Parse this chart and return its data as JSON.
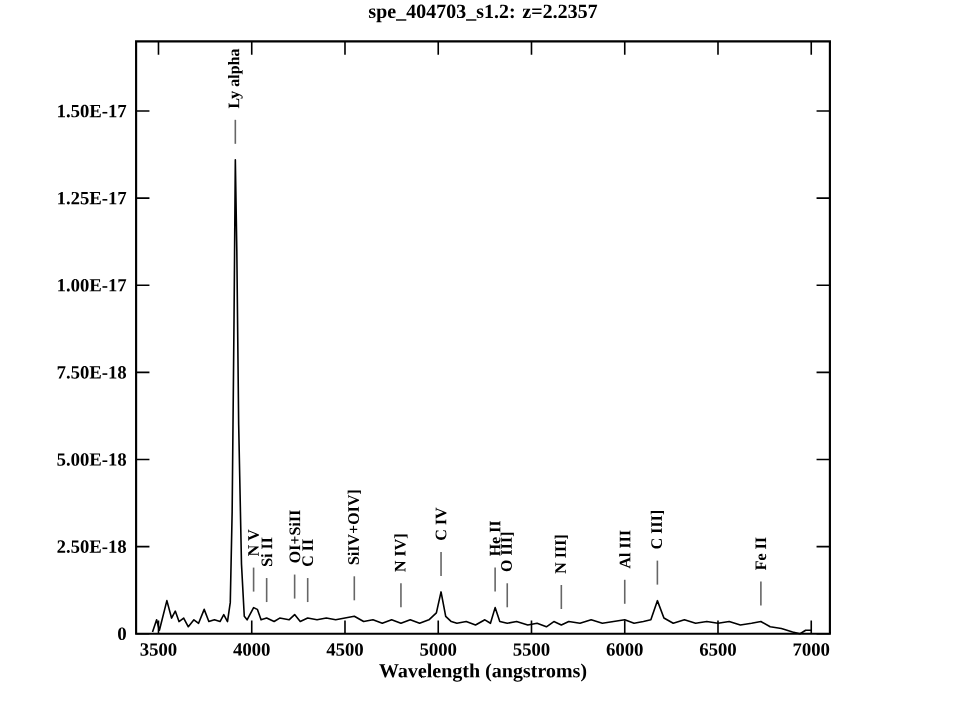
{
  "chart_data": {
    "type": "line",
    "title": "spe_404703_s1.2: z=2.2357",
    "xlabel": "Wavelength (angstroms)",
    "xlim": [
      3380,
      7100
    ],
    "ylim": [
      0,
      1.7e-17
    ],
    "xticks": [
      3500,
      4000,
      4500,
      5000,
      5500,
      6000,
      6500,
      7000
    ],
    "yticks": [
      0,
      {
        "value": 2.5e-18,
        "label": "2.50E-18"
      },
      {
        "value": 5e-18,
        "label": "5.00E-18"
      },
      {
        "value": 7.5e-18,
        "label": "7.50E-18"
      },
      {
        "value": 1e-17,
        "label": "1.00E-17"
      },
      {
        "value": 1.25e-17,
        "label": "1.25E-17"
      },
      {
        "value": 1.5e-17,
        "label": "1.50E-17"
      }
    ],
    "grid": false,
    "marker": "none",
    "line_style": "solid",
    "series": [
      {
        "color": "#000000",
        "x": [
          3468,
          3490,
          3505,
          3545,
          3570,
          3590,
          3610,
          3635,
          3660,
          3690,
          3715,
          3745,
          3770,
          3800,
          3830,
          3850,
          3870,
          3885,
          3895,
          3905,
          3912,
          3920,
          3930,
          3945,
          3960,
          3975,
          4010,
          4030,
          4050,
          4080,
          4120,
          4150,
          4200,
          4230,
          4260,
          4300,
          4350,
          4400,
          4450,
          4500,
          4550,
          4600,
          4650,
          4700,
          4750,
          4800,
          4850,
          4900,
          4950,
          4990,
          5015,
          5040,
          5070,
          5100,
          5150,
          5200,
          5250,
          5280,
          5305,
          5330,
          5370,
          5420,
          5480,
          5530,
          5580,
          5620,
          5660,
          5700,
          5760,
          5820,
          5880,
          5940,
          6000,
          6050,
          6100,
          6140,
          6175,
          6210,
          6260,
          6320,
          6380,
          6440,
          6500,
          6560,
          6620,
          6680,
          6730,
          6780,
          6840,
          6900,
          6940,
          6970,
          7000
        ],
        "values": [
          5e-20,
          4e-19,
          1e-19,
          9.5e-19,
          4.5e-19,
          6.5e-19,
          3.5e-19,
          4.5e-19,
          2e-19,
          4e-19,
          3e-19,
          7e-19,
          3.5e-19,
          4e-19,
          3.5e-19,
          5.5e-19,
          3.5e-19,
          9e-19,
          3.5e-18,
          9e-18,
          1.36e-17,
          1.1e-17,
          6e-18,
          2e-18,
          5e-19,
          4e-19,
          7.5e-19,
          7e-19,
          4e-19,
          4.5e-19,
          3.5e-19,
          4.5e-19,
          4e-19,
          5.5e-19,
          3.5e-19,
          4.5e-19,
          4e-19,
          4.5e-19,
          4e-19,
          4.5e-19,
          5e-19,
          3.5e-19,
          4e-19,
          3e-19,
          4e-19,
          3e-19,
          4e-19,
          3e-19,
          4e-19,
          6e-19,
          1.2e-18,
          5e-19,
          3.5e-19,
          3e-19,
          3.5e-19,
          2.5e-19,
          4e-19,
          3e-19,
          7.5e-19,
          3.5e-19,
          3e-19,
          3.5e-19,
          2.5e-19,
          3e-19,
          2e-19,
          3.5e-19,
          2.5e-19,
          3.5e-19,
          3e-19,
          4e-19,
          3e-19,
          3.5e-19,
          4e-19,
          3e-19,
          3.5e-19,
          4e-19,
          9.5e-19,
          4.5e-19,
          3e-19,
          4e-19,
          3e-19,
          3.5e-19,
          3e-19,
          3.5e-19,
          2.5e-19,
          3e-19,
          3.5e-19,
          2e-19,
          1.5e-19,
          5e-20,
          0,
          1e-19,
          1e-19
        ]
      }
    ],
    "annotations": [
      {
        "text": "Ly alpha",
        "x": 3912,
        "y": 1.36e-17
      },
      {
        "text": "N V",
        "x": 4010,
        "y": 7.5e-19
      },
      {
        "text": "Si II",
        "x": 4080,
        "y": 4.5e-19
      },
      {
        "text": "OI+SiII",
        "x": 4230,
        "y": 5.5e-19
      },
      {
        "text": "C II",
        "x": 4300,
        "y": 4.5e-19
      },
      {
        "text": "SiIV+OIV]",
        "x": 4550,
        "y": 5e-19
      },
      {
        "text": "N IV]",
        "x": 4800,
        "y": 3e-19
      },
      {
        "text": "C IV",
        "x": 5015,
        "y": 1.2e-18
      },
      {
        "text": "He II",
        "x": 5305,
        "y": 7.5e-19
      },
      {
        "text": "O III]",
        "x": 5370,
        "y": 3e-19
      },
      {
        "text": "N III]",
        "x": 5660,
        "y": 2.5e-19
      },
      {
        "text": "Al III",
        "x": 6000,
        "y": 4e-19
      },
      {
        "text": "C III]",
        "x": 6175,
        "y": 9.5e-19
      },
      {
        "text": "Fe II",
        "x": 6730,
        "y": 3.5e-19
      }
    ]
  }
}
